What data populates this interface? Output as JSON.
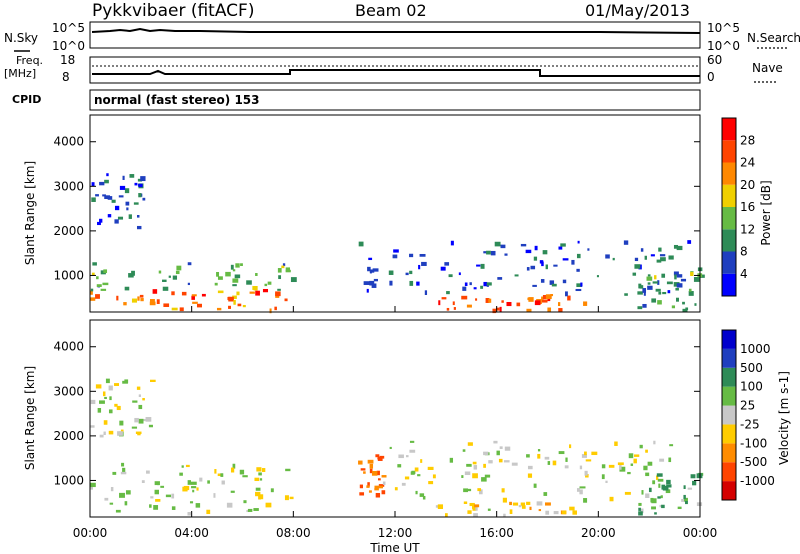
{
  "header": {
    "station": "Pykkvibaer (fitACF)",
    "beam": "Beam 02",
    "date": "01/May/2013"
  },
  "noise_panel": {
    "left_label": "N.Sky",
    "right_label": "N.Search",
    "left_ticks": [
      "10^5",
      "10^0"
    ],
    "right_ticks": [
      "10^5",
      "10^0"
    ]
  },
  "freq_panel": {
    "left_label_1": "Freq.",
    "left_label_2": "[MHz]",
    "right_label": "Nave",
    "left_ticks": [
      "18",
      "8"
    ],
    "right_ticks": [
      "60",
      "0"
    ]
  },
  "cpid": {
    "label": "CPID",
    "text": "normal (fast stereo) 153"
  },
  "x_axis": {
    "label": "Time UT",
    "ticks": [
      "00:00",
      "04:00",
      "08:00",
      "12:00",
      "16:00",
      "20:00",
      "00:00"
    ]
  },
  "colors": {
    "power_scale": [
      "#0000ff",
      "#1f3fbf",
      "#2e8b57",
      "#66bb44",
      "#f0d000",
      "#ff8800",
      "#ff4400",
      "#ff0000"
    ],
    "velocity_scale": [
      "#d40000",
      "#ff4400",
      "#ff8c00",
      "#ffcc00",
      "#c8c8c8",
      "#66bb44",
      "#2e8b57",
      "#1f3fbf",
      "#0000cc"
    ]
  },
  "chart_data": [
    {
      "type": "heatmap",
      "title": "Power",
      "xlabel": "Time UT",
      "ylabel": "Slant Range [km]",
      "y_ticks": [
        "1000",
        "2000",
        "3000",
        "4000"
      ],
      "ylim": [
        180,
        4600
      ],
      "xlim_hours": [
        0,
        24
      ],
      "colorbar_label": "Power [dB]",
      "colorbar_ticks": [
        "4",
        "8",
        "12",
        "16",
        "20",
        "24",
        "28"
      ],
      "regions": [
        {
          "t0": 0.0,
          "t1": 7.9,
          "r0": 200,
          "r1": 700,
          "level": "high",
          "value_db": 24
        },
        {
          "t0": 0.0,
          "t1": 8.0,
          "r0": 700,
          "r1": 1300,
          "level": "medium",
          "value_db": 12
        },
        {
          "t0": 0.0,
          "t1": 2.2,
          "r0": 2000,
          "r1": 3300,
          "level": "low",
          "value_db": 6
        },
        {
          "t0": 13.5,
          "t1": 19.5,
          "r0": 250,
          "r1": 600,
          "level": "high",
          "value_db": 26
        },
        {
          "t0": 10.5,
          "t1": 23.5,
          "r0": 600,
          "r1": 1800,
          "level": "low",
          "value_db": 6
        },
        {
          "t0": 21.5,
          "t1": 24.0,
          "r0": 250,
          "r1": 1200,
          "level": "medium",
          "value_db": 12
        }
      ]
    },
    {
      "type": "heatmap",
      "title": "Velocity",
      "xlabel": "Time UT",
      "ylabel": "Slant Range [km]",
      "y_ticks": [
        "1000",
        "2000",
        "3000",
        "4000"
      ],
      "ylim": [
        180,
        4600
      ],
      "xlim_hours": [
        0,
        24
      ],
      "colorbar_label": "Velocity [m s-1]",
      "colorbar_ticks": [
        "-1000",
        "-500",
        "-100",
        "-25",
        "25",
        "100",
        "500",
        "1000"
      ],
      "regions": [
        {
          "t0": 0.0,
          "t1": 8.0,
          "r0": 250,
          "r1": 1400,
          "value_ms": 0
        },
        {
          "t0": 0.0,
          "t1": 2.5,
          "r0": 2000,
          "r1": 3300,
          "value_ms": 0
        },
        {
          "t0": 10.5,
          "t1": 11.5,
          "r0": 700,
          "r1": 1600,
          "value_ms": -500
        },
        {
          "t0": 13.5,
          "t1": 19.0,
          "r0": 250,
          "r1": 600,
          "value_ms": -50
        },
        {
          "t0": 11.5,
          "t1": 23.0,
          "r0": 600,
          "r1": 1900,
          "value_ms": 0
        },
        {
          "t0": 21.5,
          "t1": 24.0,
          "r0": 250,
          "r1": 1200,
          "value_ms": 100
        }
      ]
    }
  ]
}
